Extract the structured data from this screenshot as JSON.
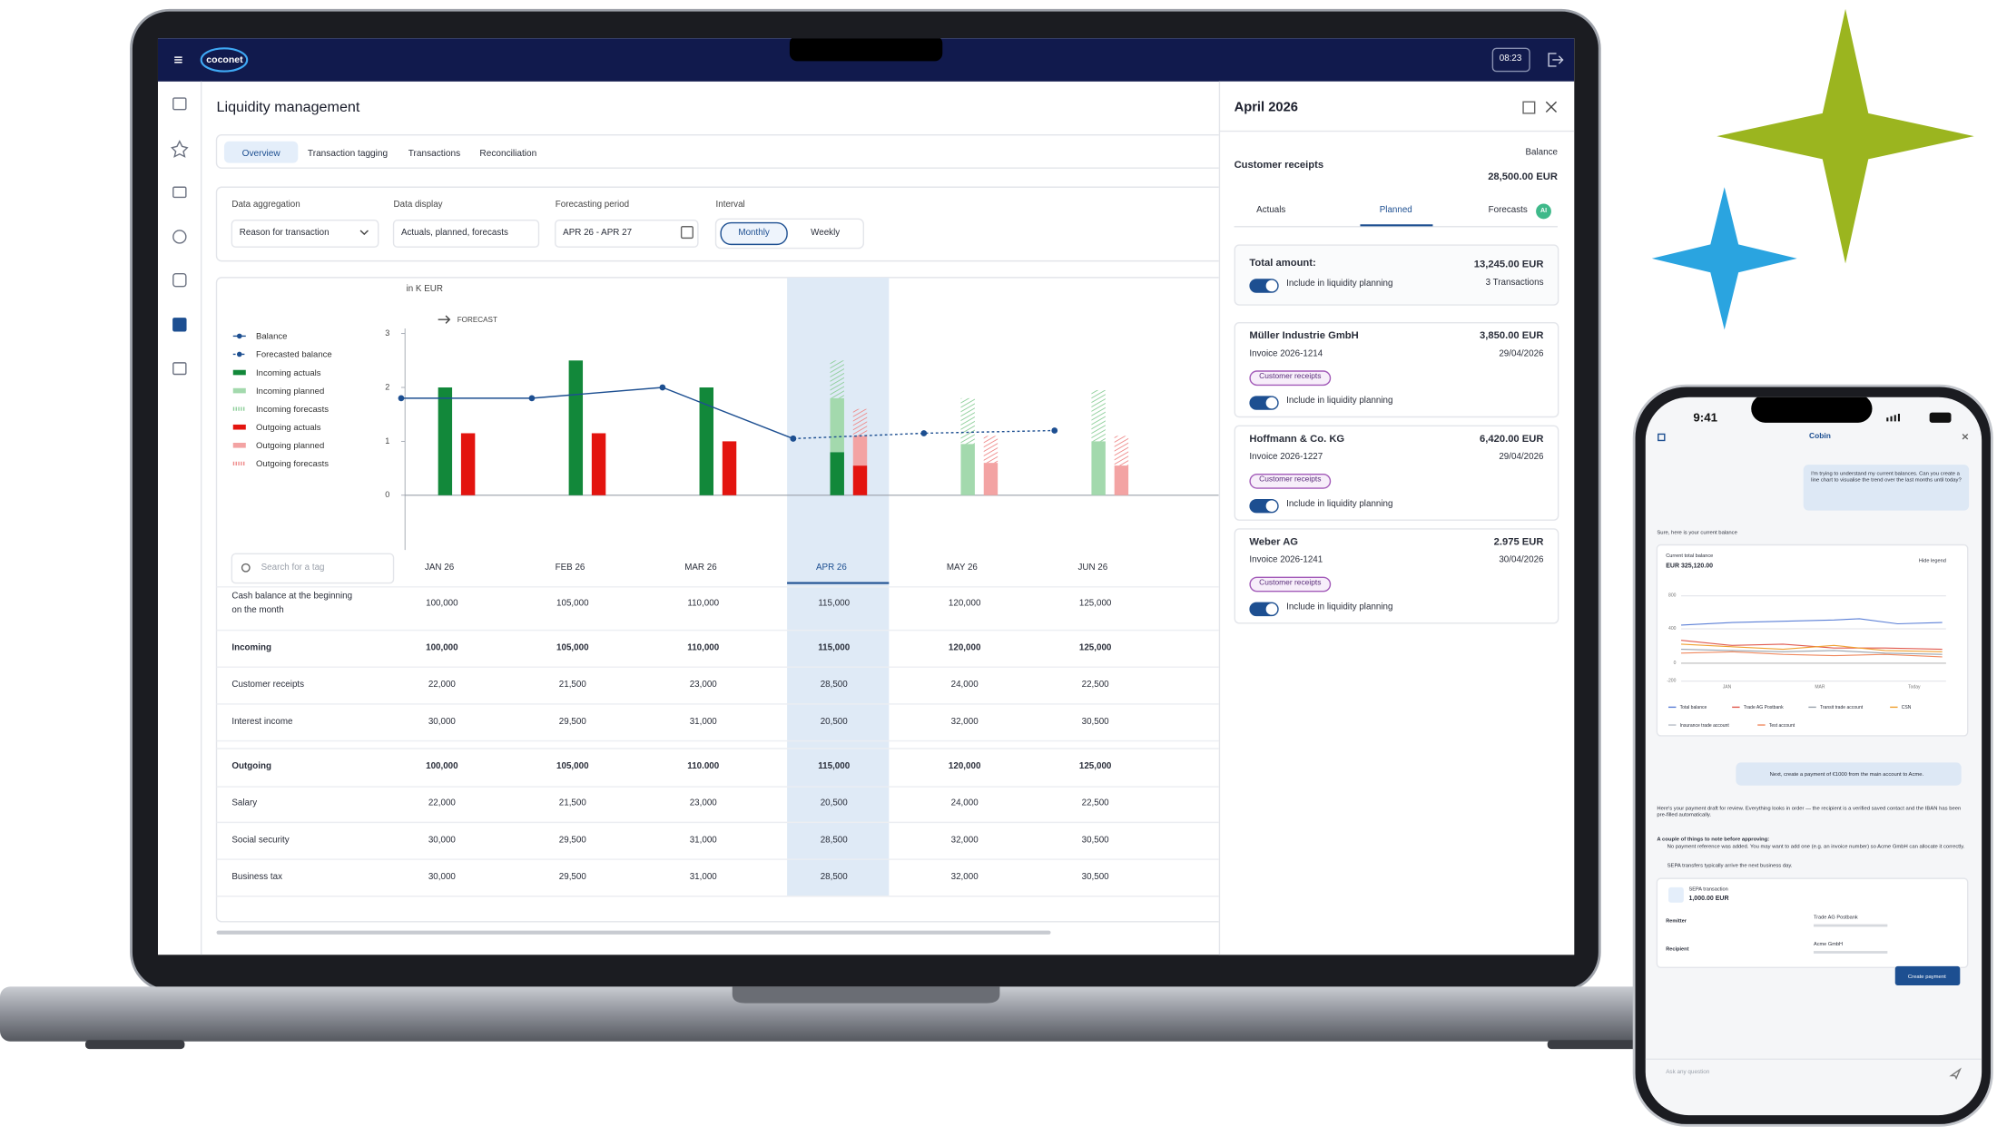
{
  "app": {
    "logo": "coconet",
    "time": "08:23"
  },
  "page": {
    "title": "Liquidity management",
    "tabs": [
      "Overview",
      "Transaction tagging",
      "Transactions",
      "Reconciliation"
    ],
    "filters": [
      {
        "label": "Data aggregation",
        "value": "Reason for transaction"
      },
      {
        "label": "Data display",
        "value": "Actuals, planned, forecasts"
      },
      {
        "label": "Forecasting period",
        "value": "APR 26 - APR 27"
      }
    ],
    "interval": {
      "label": "Interval",
      "options": [
        "Monthly",
        "Weekly"
      ]
    }
  },
  "chart_data": {
    "type": "bar",
    "unit_label": "in K EUR",
    "annotation": "FORECAST",
    "categories": [
      "JAN 26",
      "FEB 26",
      "MAR 26",
      "APR 26",
      "MAY 26",
      "JUN 26"
    ],
    "ylim": [
      0,
      3
    ],
    "yticks": [
      0,
      1,
      2,
      3
    ],
    "series": [
      {
        "name": "Balance",
        "type": "line",
        "color": "#1d4f91",
        "values": [
          1.8,
          1.8,
          2.0,
          1.05,
          null,
          null
        ]
      },
      {
        "name": "Forecasted balance",
        "type": "line",
        "dashed": true,
        "color": "#1d4f91",
        "values": [
          null,
          null,
          null,
          1.05,
          1.15,
          1.2
        ]
      },
      {
        "name": "Incoming actuals",
        "type": "bar",
        "stack": "Incoming",
        "color": "#12883a",
        "values": [
          2.0,
          2.5,
          2.0,
          0.8,
          null,
          null
        ]
      },
      {
        "name": "Incoming planned",
        "type": "bar",
        "stack": "Incoming",
        "color": "#a3d9ad",
        "values": [
          null,
          null,
          null,
          1.0,
          0.95,
          1.0
        ]
      },
      {
        "name": "Incoming forecasts",
        "type": "bar",
        "stack": "Incoming",
        "pattern": "hatched",
        "color": "#8fcf9b",
        "values": [
          null,
          null,
          null,
          0.7,
          0.85,
          0.95
        ]
      },
      {
        "name": "Outgoing actuals",
        "type": "bar",
        "stack": "Outgoing",
        "color": "#e3140f",
        "values": [
          1.15,
          1.15,
          1.0,
          0.55,
          null,
          null
        ]
      },
      {
        "name": "Outgoing planned",
        "type": "bar",
        "stack": "Outgoing",
        "color": "#f3a3a3",
        "values": [
          null,
          null,
          null,
          0.55,
          0.6,
          0.55
        ]
      },
      {
        "name": "Outgoing forecasts",
        "type": "bar",
        "stack": "Outgoing",
        "pattern": "hatched",
        "color": "#ef8c8c",
        "values": [
          null,
          null,
          null,
          0.5,
          0.5,
          0.55
        ]
      }
    ]
  },
  "table": {
    "search_placeholder": "Search for a tag",
    "rows": [
      {
        "label": "Cash balance at the beginning on the month",
        "values": [
          "100,000",
          "105,000",
          "110,000",
          "115,000",
          "120,000",
          "125,000"
        ]
      },
      {
        "label": "Incoming",
        "values": [
          "100,000",
          "105,000",
          "110,000",
          "115,000",
          "120,000",
          "125,000"
        ]
      },
      {
        "label": "Customer receipts",
        "values": [
          "22,000",
          "21,500",
          "23,000",
          "28,500",
          "24,000",
          "22,500"
        ]
      },
      {
        "label": "Interest income",
        "values": [
          "30,000",
          "29,500",
          "31,000",
          "20,500",
          "32,000",
          "30,500"
        ]
      },
      {
        "label": "Outgoing",
        "values": [
          "100,000",
          "105,000",
          "110.000",
          "115,000",
          "120,000",
          "125,000"
        ]
      },
      {
        "label": "Salary",
        "values": [
          "22,000",
          "21,500",
          "23,000",
          "20,500",
          "24,000",
          "22,500"
        ]
      },
      {
        "label": "Social security",
        "values": [
          "30,000",
          "29,500",
          "31,000",
          "28,500",
          "32,000",
          "30,500"
        ]
      },
      {
        "label": "Business tax",
        "values": [
          "30,000",
          "29,500",
          "31,000",
          "28,500",
          "32,000",
          "30,500"
        ]
      }
    ]
  },
  "side_panel": {
    "title": "April 2026",
    "category": "Customer receipts",
    "balance_label": "Balance",
    "balance": "28,500.00 EUR",
    "tabs": [
      "Actuals",
      "Planned",
      "Forecasts"
    ],
    "ai_badge": "AI",
    "total": {
      "label": "Total amount:",
      "amount": "13,245.00 EUR",
      "toggle": "Include in liquidity planning",
      "count": "3 Transactions"
    },
    "items": [
      {
        "name": "Müller Industrie GmbH",
        "amount": "3,850.00 EUR",
        "invoice": "Invoice 2026-1214",
        "date": "29/04/2026",
        "tag": "Customer receipts",
        "toggle": "Include in liquidity planning"
      },
      {
        "name": "Hoffmann & Co. KG",
        "amount": "6,420.00 EUR",
        "invoice": "Invoice 2026-1227",
        "date": "29/04/2026",
        "tag": "Customer receipts",
        "toggle": "Include in liquidity planning"
      },
      {
        "name": "Weber AG",
        "amount": "2.975 EUR",
        "invoice": "Invoice 2026-1241",
        "date": "30/04/2026",
        "tag": "Customer receipts",
        "toggle": "Include in liquidity planning"
      }
    ]
  },
  "phone": {
    "time": "9:41",
    "title": "Cobin",
    "user_message_1": "I'm trying to understand my current balances. Can you create a line chart to visualise the trend over the last months until today?",
    "reply_1": "Sure, here is your current balance",
    "balance_card": {
      "title": "Current total balance",
      "amount": "EUR 325,120.00",
      "toggle": "Hide legend",
      "yticks": [
        "800",
        "400",
        "0",
        "-200"
      ],
      "xticks": [
        "JAN",
        "MAR",
        "Today"
      ],
      "legend": [
        {
          "name": "Total balance",
          "color": "#5b7fd6"
        },
        {
          "name": "Trade AG Postbank",
          "color": "#e05a4f"
        },
        {
          "name": "Transit trade account",
          "color": "#9aa3ad"
        },
        {
          "name": "CSN",
          "color": "#f0a030"
        },
        {
          "name": "Insurance trade account",
          "color": "#b7bdc6"
        },
        {
          "name": "Test account",
          "color": "#f08a60"
        }
      ]
    },
    "user_message_2": "Next, create a payment of €1000 from the main account to Acme.",
    "reply_2": "Here's your payment draft for review. Everything looks in order — the recipient is a verified saved contact and the IBAN has been pre-filled automatically.",
    "notes_title": "A couple of things to note before approving:",
    "notes": [
      "No payment reference was added. You may want to add one (e.g. an invoice number) so Acme GmbH can allocate it correctly.",
      "SEPA transfers typically arrive the next business day."
    ],
    "payment": {
      "type": "SEPA transaction",
      "amount": "1,000.00 EUR",
      "remitter_label": "Remitter",
      "remitter": "Trade AG Postbank",
      "recipient_label": "Recipient",
      "recipient": "Acme GmbH",
      "button": "Create payment"
    },
    "input_placeholder": "Ask any question"
  }
}
